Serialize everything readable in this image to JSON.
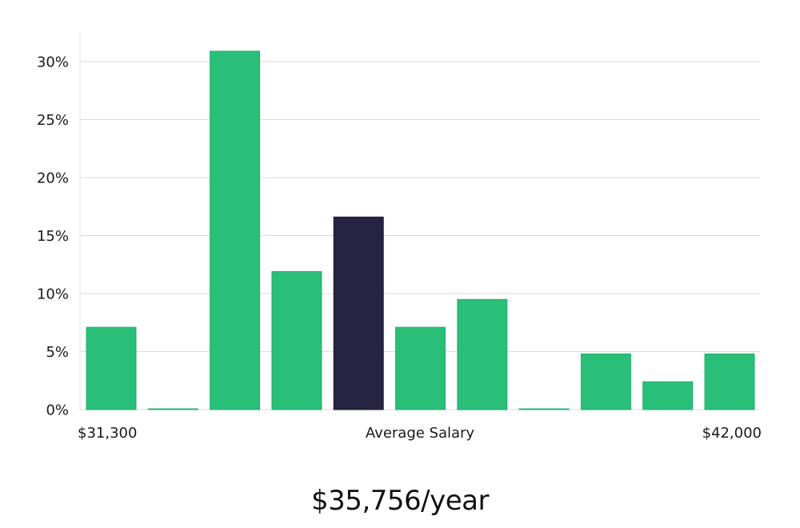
{
  "chart_data": {
    "type": "bar",
    "title": "",
    "xlabel": "Average Salary",
    "ylabel": "",
    "x_range_labels": {
      "min": "$31,300",
      "max": "$42,000"
    },
    "ylim": [
      0,
      32.5
    ],
    "yticks": [
      0,
      5,
      10,
      15,
      20,
      25,
      30
    ],
    "ytick_labels": [
      "0%",
      "5%",
      "10%",
      "15%",
      "20%",
      "25%",
      "30%"
    ],
    "values": [
      7.1,
      0.05,
      30.9,
      11.9,
      16.6,
      7.1,
      9.5,
      0.05,
      4.8,
      2.4,
      4.8
    ],
    "highlight_index": 4,
    "colors": {
      "bar": "#2abf78",
      "bar_stroke": "#22b06c",
      "highlight": "#272343",
      "grid": "#dcdcdc"
    },
    "grid": true,
    "legend": "none"
  },
  "summary": {
    "average_salary": "$35,756/year"
  }
}
